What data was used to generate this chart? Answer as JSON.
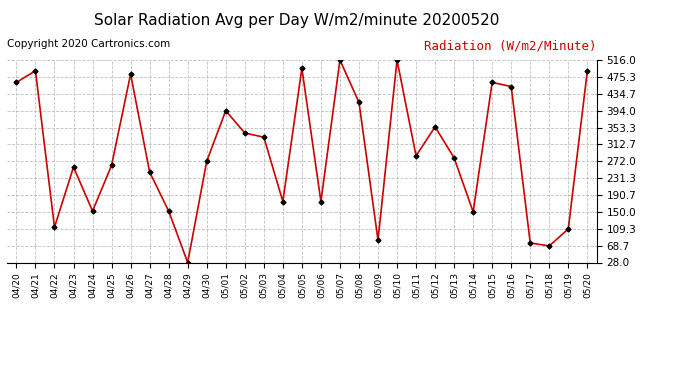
{
  "title": "Solar Radiation Avg per Day W/m2/minute 20200520",
  "copyright": "Copyright 2020 Cartronics.com",
  "legend_label": "Radiation (W/m2/Minute)",
  "dates": [
    "04/20",
    "04/21",
    "04/22",
    "04/23",
    "04/24",
    "04/25",
    "04/26",
    "04/27",
    "04/28",
    "04/29",
    "04/30",
    "05/01",
    "05/02",
    "05/03",
    "05/04",
    "05/05",
    "05/06",
    "05/07",
    "05/08",
    "05/09",
    "05/10",
    "05/11",
    "05/12",
    "05/13",
    "05/14",
    "05/15",
    "05/16",
    "05/17",
    "05/18",
    "05/19",
    "05/20"
  ],
  "values": [
    462.0,
    490.0,
    113.0,
    258.0,
    152.0,
    262.0,
    482.0,
    246.0,
    152.0,
    28.0,
    272.0,
    394.0,
    340.0,
    330.0,
    175.0,
    496.0,
    175.0,
    516.0,
    414.0,
    82.0,
    516.0,
    285.0,
    355.0,
    280.0,
    150.0,
    462.0,
    452.0,
    75.0,
    68.0,
    109.0,
    490.0
  ],
  "line_color": "#cc0000",
  "marker_color": "#000000",
  "background_color": "#ffffff",
  "grid_color": "#b0b0b0",
  "yticks": [
    28.0,
    68.7,
    109.3,
    150.0,
    190.7,
    231.3,
    272.0,
    312.7,
    353.3,
    394.0,
    434.7,
    475.3,
    516.0
  ],
  "ymin": 28.0,
  "ymax": 516.0,
  "title_fontsize": 11,
  "copyright_fontsize": 7.5,
  "legend_fontsize": 9
}
